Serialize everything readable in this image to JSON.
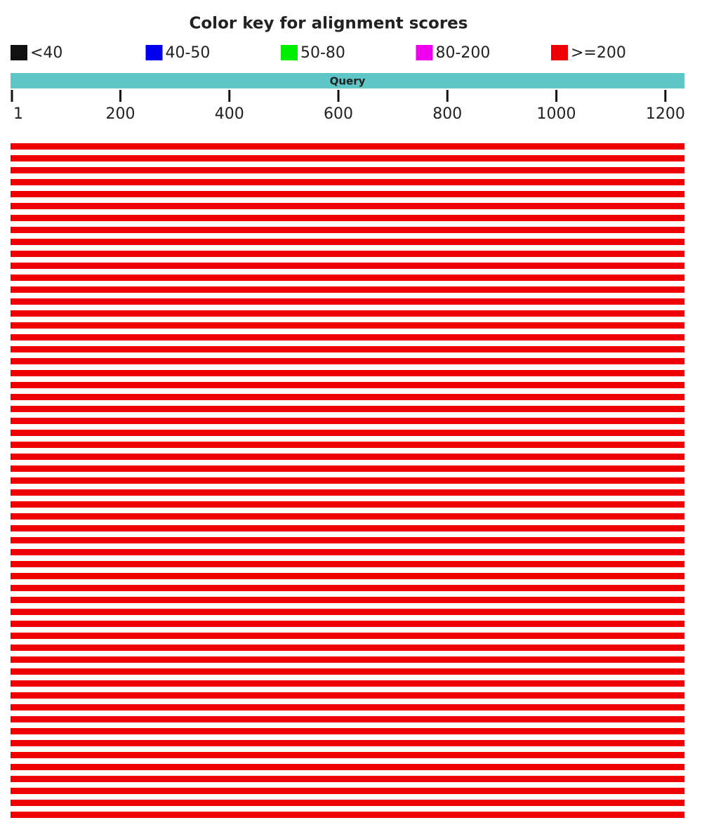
{
  "chart_data": {
    "type": "alignment",
    "title": "Color key for alignment scores",
    "legend": [
      {
        "label": "<40",
        "color": "#111111"
      },
      {
        "label": "40-50",
        "color": "#0000ee"
      },
      {
        "label": "50-80",
        "color": "#00ee00"
      },
      {
        "label": "80-200",
        "color": "#ee00ee"
      },
      {
        "label": ">=200",
        "color": "#ee0000"
      }
    ],
    "query_label": "Query",
    "query_color": "#5fc6c6",
    "xlim": [
      1,
      1235
    ],
    "xticks": [
      1,
      200,
      400,
      600,
      800,
      1000,
      1200
    ],
    "hits": {
      "color": "#ee0000",
      "starts": [
        1,
        1,
        1,
        1,
        1,
        1,
        1,
        1,
        1,
        1,
        1,
        1,
        1,
        1,
        1,
        1,
        1,
        1,
        1,
        1,
        1,
        1,
        1,
        1,
        1,
        1,
        1,
        1,
        1,
        1,
        1,
        1,
        1,
        1,
        1,
        1,
        1,
        1,
        1,
        1,
        1,
        1,
        1,
        1,
        1,
        1,
        1,
        1,
        1,
        1,
        1,
        1,
        1,
        1,
        1,
        1,
        1
      ],
      "ends": [
        1235,
        1235,
        1235,
        1235,
        1235,
        1235,
        1235,
        1235,
        1235,
        1235,
        1235,
        1235,
        1235,
        1235,
        1235,
        1235,
        1235,
        1235,
        1235,
        1235,
        1235,
        1235,
        1235,
        1235,
        1235,
        1235,
        1235,
        1235,
        1235,
        1235,
        1235,
        1235,
        1235,
        1235,
        1235,
        1235,
        1235,
        1235,
        1235,
        1235,
        1235,
        1235,
        1235,
        1235,
        1235,
        1235,
        1235,
        1235,
        1235,
        1235,
        1235,
        1235,
        1235,
        1235,
        1235,
        1235,
        1235
      ]
    }
  }
}
